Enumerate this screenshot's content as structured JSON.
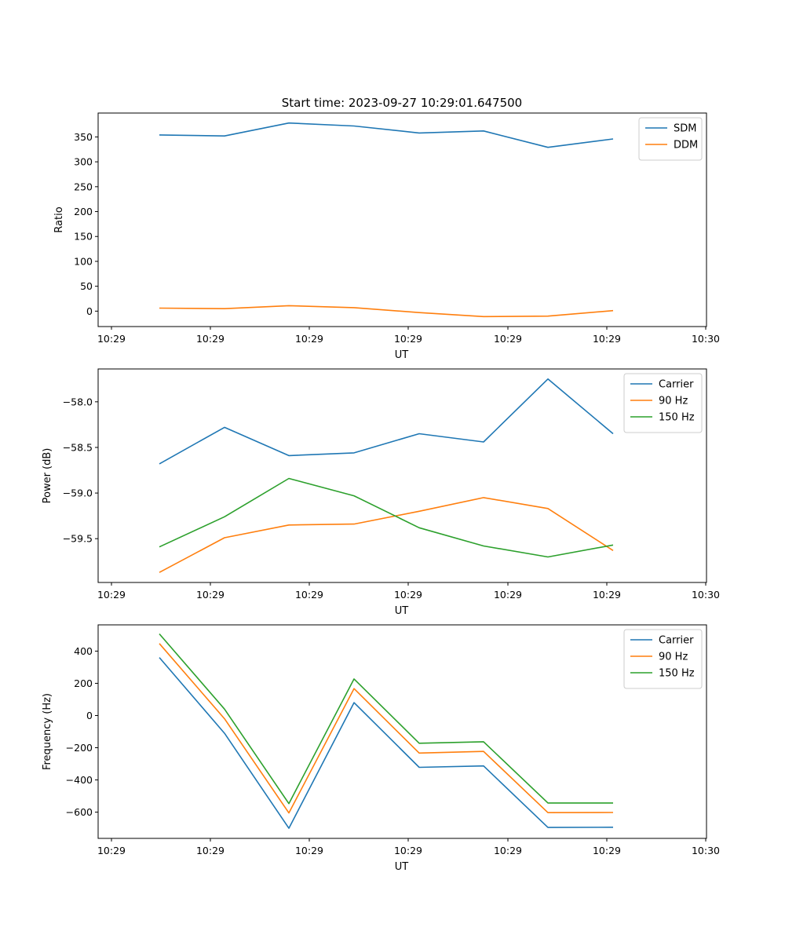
{
  "figure_title": "Start time: 2023-09-27 10:29:01.647500",
  "colors": {
    "blue": "#1f77b4",
    "orange": "#ff7f0e",
    "green": "#2ca02c"
  },
  "chart_data": [
    {
      "type": "line",
      "title": "Start time: 2023-09-27 10:29:01.647500",
      "xlabel": "UT",
      "ylabel": "Ratio",
      "xticks": [
        "10:29",
        "10:29",
        "10:29",
        "10:29",
        "10:29",
        "10:29",
        "10:30"
      ],
      "yticks": [
        0,
        50,
        100,
        150,
        200,
        250,
        300,
        350
      ],
      "ylim": [
        -31,
        398
      ],
      "legend_position": "top-right",
      "series": [
        {
          "name": "SDM",
          "color": "#1f77b4",
          "values": [
            354,
            352,
            378,
            372,
            358,
            362,
            329,
            346
          ]
        },
        {
          "name": "DDM",
          "color": "#ff7f0e",
          "values": [
            6,
            5,
            11,
            7,
            -3,
            -11,
            -10,
            1
          ]
        }
      ]
    },
    {
      "type": "line",
      "title": "",
      "xlabel": "UT",
      "ylabel": "Power (dB)",
      "xticks": [
        "10:29",
        "10:29",
        "10:29",
        "10:29",
        "10:29",
        "10:29",
        "10:30"
      ],
      "yticks": [
        -58.0,
        -58.5,
        -59.0,
        -59.5
      ],
      "ylim": [
        -59.98,
        -57.64
      ],
      "legend_position": "top-right",
      "series": [
        {
          "name": "Carrier",
          "color": "#1f77b4",
          "values": [
            -58.68,
            -58.28,
            -58.59,
            -58.56,
            -58.35,
            -58.44,
            -57.75,
            -58.35
          ]
        },
        {
          "name": "90 Hz",
          "color": "#ff7f0e",
          "values": [
            -59.87,
            -59.49,
            -59.35,
            -59.34,
            -59.2,
            -59.05,
            -59.17,
            -59.63
          ]
        },
        {
          "name": "150 Hz",
          "color": "#2ca02c",
          "values": [
            -59.59,
            -59.26,
            -58.84,
            -59.03,
            -59.38,
            -59.58,
            -59.7,
            -59.57
          ]
        }
      ]
    },
    {
      "type": "line",
      "title": "",
      "xlabel": "UT",
      "ylabel": "Frequency (Hz)",
      "xticks": [
        "10:29",
        "10:29",
        "10:29",
        "10:29",
        "10:29",
        "10:29",
        "10:30"
      ],
      "yticks": [
        400,
        200,
        0,
        -200,
        -400,
        -600
      ],
      "ylim": [
        -763,
        563
      ],
      "legend_position": "top-right",
      "series": [
        {
          "name": "Carrier",
          "color": "#1f77b4",
          "values": [
            360,
            -110,
            -700,
            80,
            -322,
            -313,
            -695,
            -694
          ]
        },
        {
          "name": "90 Hz",
          "color": "#ff7f0e",
          "values": [
            447,
            -20,
            -605,
            167,
            -233,
            -223,
            -603,
            -602
          ]
        },
        {
          "name": "150 Hz",
          "color": "#2ca02c",
          "values": [
            507,
            40,
            -547,
            227,
            -172,
            -163,
            -543,
            -543
          ]
        }
      ]
    }
  ]
}
